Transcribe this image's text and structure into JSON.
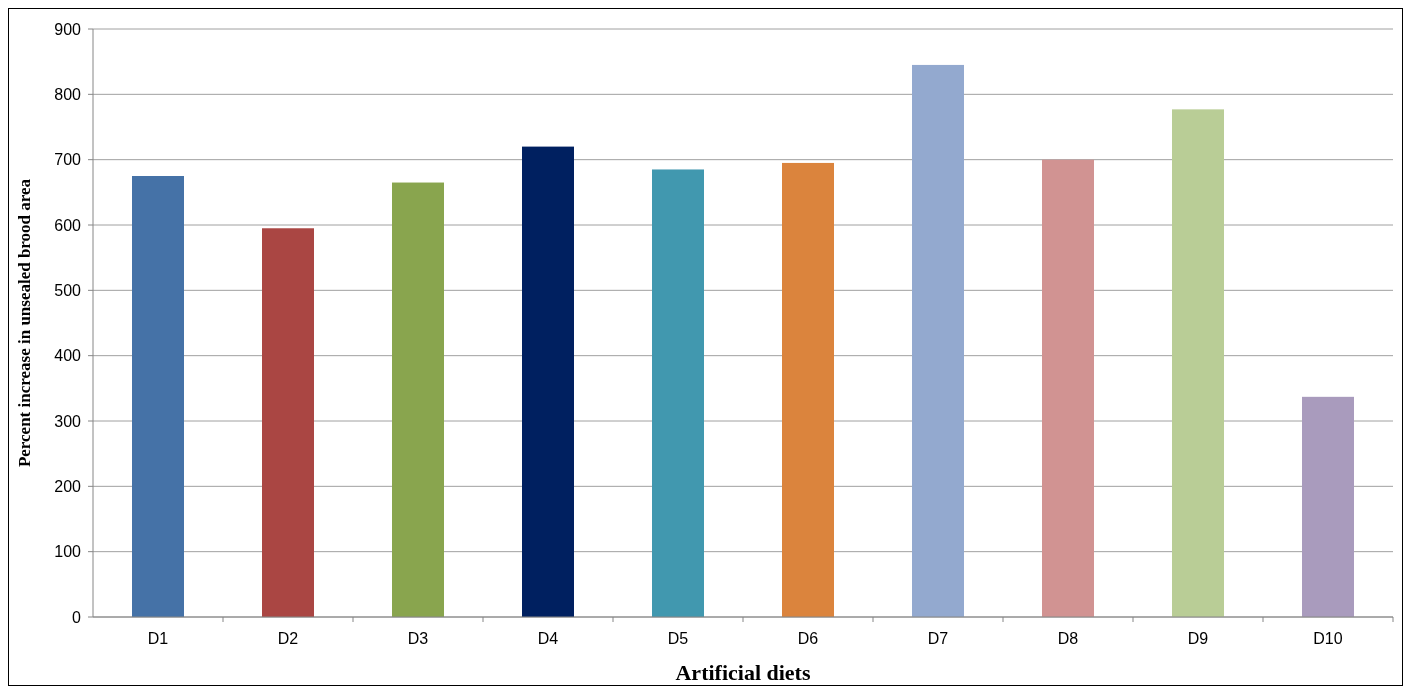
{
  "chart_data": {
    "type": "bar",
    "xlabel": "Artificial diets",
    "ylabel": "Percent increase in unsealed brood area",
    "categories": [
      "D1",
      "D2",
      "D3",
      "D4",
      "D5",
      "D6",
      "D7",
      "D8",
      "D9",
      "D10"
    ],
    "values": [
      675,
      595,
      665,
      720,
      685,
      695,
      845,
      700,
      777,
      337
    ],
    "colors": [
      "#4572a7",
      "#aa4643",
      "#89a54e",
      "#002060",
      "#4198af",
      "#db843d",
      "#93a9cf",
      "#d19392",
      "#b9cd96",
      "#a99bbd"
    ],
    "ylim": [
      0,
      900
    ],
    "yticks": [
      0,
      100,
      200,
      300,
      400,
      500,
      600,
      700,
      800,
      900
    ],
    "grid": "y"
  }
}
